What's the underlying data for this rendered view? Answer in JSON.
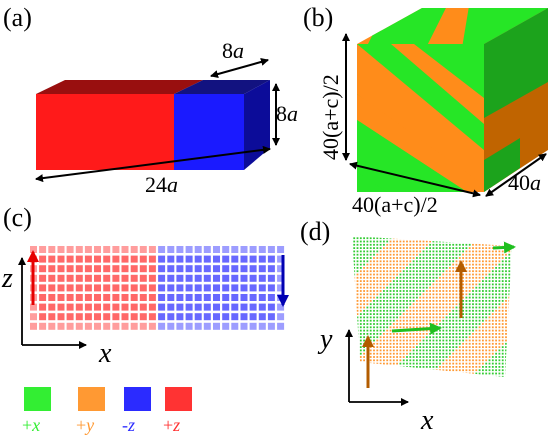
{
  "panels": {
    "a": {
      "label": "(a)",
      "dim_width": "8",
      "dim_height": "8",
      "dim_length": "24",
      "unit": "a",
      "colors": {
        "left": "#ff1a1a",
        "right": "#1a1aff"
      }
    },
    "b": {
      "label": "(b)",
      "dim_vertical": "40(a+c)/2",
      "dim_bottom": "40(a+c)/2",
      "dim_depth_num": "40",
      "unit": "a",
      "colors": {
        "green": "#26e626",
        "orange": "#ff8c1a"
      }
    },
    "c": {
      "label": "(c)",
      "axis_x": "x",
      "axis_z": "z",
      "colors": {
        "red": "#ff4d4d",
        "blue": "#4d4dff",
        "red_arrow": "#e60000",
        "blue_arrow": "#0000b3"
      }
    },
    "d": {
      "label": "(d)",
      "axis_x": "x",
      "axis_y": "y",
      "colors": {
        "green": "#33cc33",
        "orange": "#ff9933",
        "arrow_orange": "#b35c00",
        "arrow_green": "#1fbf1f"
      }
    }
  },
  "legend": [
    {
      "label": "+x",
      "sign": "+",
      "axis": "x",
      "color": "#33ee33"
    },
    {
      "label": "+y",
      "sign": "+",
      "axis": "y",
      "color": "#ff9933"
    },
    {
      "label": "-z",
      "sign": "-",
      "axis": "z",
      "color": "#2b2bff"
    },
    {
      "label": "+z",
      "sign": "+",
      "axis": "z",
      "color": "#ff3333"
    }
  ]
}
